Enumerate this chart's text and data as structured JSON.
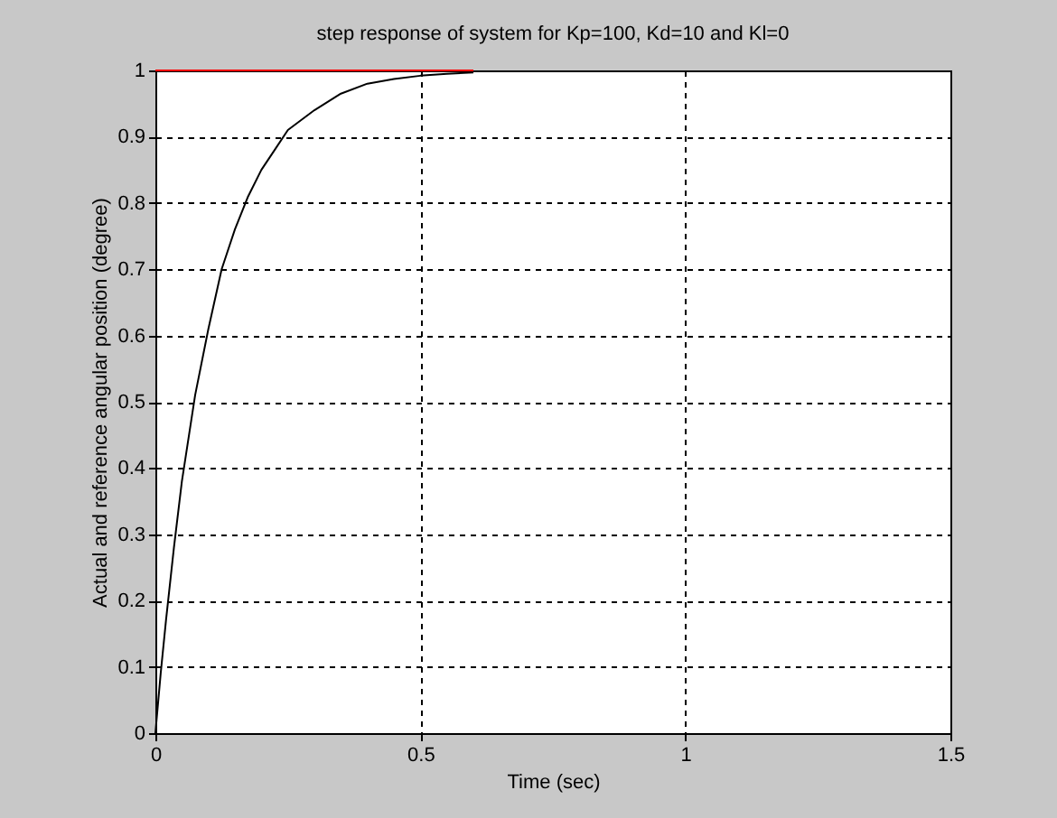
{
  "chart_data": {
    "type": "line",
    "title": "step response of system for Kp=100, Kd=10 and Kl=0",
    "xlabel": "Time (sec)",
    "ylabel": "Actual and reference angular position (degree)",
    "xlim": [
      0,
      1.5
    ],
    "xticks": [
      0,
      0.5,
      1,
      1.5
    ],
    "ylim": [
      0,
      1
    ],
    "yticks": [
      0,
      0.1,
      0.2,
      0.3,
      0.4,
      0.5,
      0.6,
      0.7,
      0.8,
      0.9,
      1
    ],
    "grid": true,
    "series": [
      {
        "color": "#ff0000",
        "x": [
          0,
          0.6
        ],
        "values": [
          1,
          1
        ]
      },
      {
        "color": "#000000",
        "x": [
          0,
          0.01,
          0.02,
          0.035,
          0.05,
          0.075,
          0.1,
          0.125,
          0.15,
          0.175,
          0.2,
          0.225,
          0.25,
          0.3,
          0.35,
          0.4,
          0.45,
          0.5,
          0.55,
          0.6
        ],
        "values": [
          0,
          0.09,
          0.17,
          0.28,
          0.38,
          0.51,
          0.61,
          0.7,
          0.76,
          0.81,
          0.85,
          0.88,
          0.91,
          0.94,
          0.965,
          0.98,
          0.987,
          0.992,
          0.995,
          0.997
        ]
      }
    ]
  }
}
